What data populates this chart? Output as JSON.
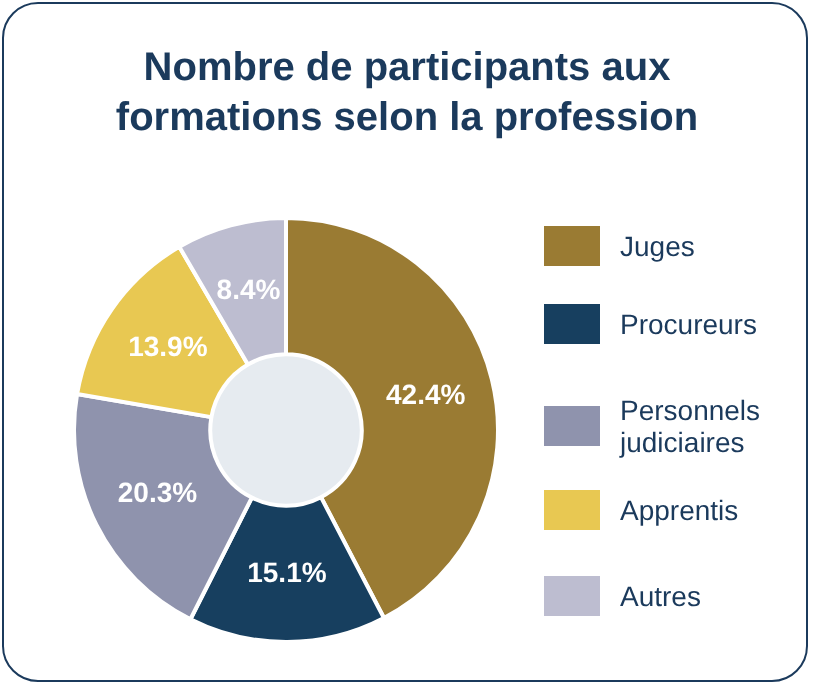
{
  "chart_data": {
    "type": "donut",
    "title": "Nombre de participants aux formations selon la profession",
    "categories": [
      "Juges",
      "Procureurs",
      "Personnels judiciaires",
      "Apprentis",
      "Autres"
    ],
    "values": [
      42.4,
      15.1,
      20.3,
      13.9,
      8.4
    ],
    "colors": [
      "#9a7b33",
      "#173f5f",
      "#8f93ad",
      "#e8c852",
      "#bdbdd0"
    ],
    "value_labels": [
      "42.4%",
      "15.1%",
      "20.3%",
      "13.9%",
      "8.4%"
    ],
    "legend": "right"
  }
}
